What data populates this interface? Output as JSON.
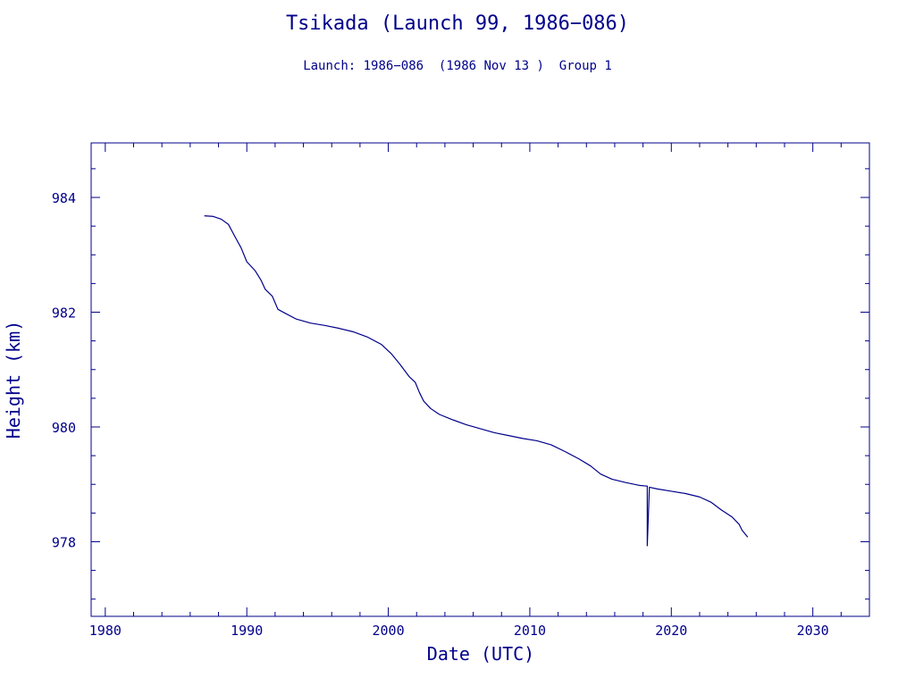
{
  "chart_data": {
    "type": "line",
    "title": "Tsikada (Launch 99, 1986−086)",
    "subtitle": "Launch: 1986−086  (1986 Nov 13 )  Group 1",
    "xlabel": "Date (UTC)",
    "ylabel": "Height (km)",
    "xlim": [
      1979,
      2034
    ],
    "ylim": [
      976.7,
      984.95
    ],
    "xticks": [
      1980,
      1990,
      2000,
      2010,
      2020,
      2030
    ],
    "xtick_labels": [
      "1980",
      "1990",
      "2000",
      "2010",
      "2020",
      "2030"
    ],
    "yticks": [
      978,
      980,
      982,
      984
    ],
    "ytick_labels": [
      "978",
      "980",
      "982",
      "984"
    ],
    "grid": false,
    "colors": {
      "line": "#00008b",
      "text": "#00008b",
      "background": "#ffffff"
    },
    "series": [
      {
        "values": [
          [
            1987.0,
            983.68
          ],
          [
            1987.6,
            983.67
          ],
          [
            1988.2,
            983.62
          ],
          [
            1988.7,
            983.53
          ],
          [
            1989.2,
            983.3
          ],
          [
            1989.6,
            983.12
          ],
          [
            1990.0,
            982.88
          ],
          [
            1990.6,
            982.72
          ],
          [
            1991.0,
            982.56
          ],
          [
            1991.3,
            982.4
          ],
          [
            1991.8,
            982.28
          ],
          [
            1992.2,
            982.05
          ],
          [
            1992.8,
            981.97
          ],
          [
            1993.5,
            981.88
          ],
          [
            1994.5,
            981.81
          ],
          [
            1995.5,
            981.77
          ],
          [
            1996.5,
            981.72
          ],
          [
            1997.5,
            981.66
          ],
          [
            1998.5,
            981.57
          ],
          [
            1999.5,
            981.44
          ],
          [
            2000.2,
            981.28
          ],
          [
            2000.8,
            981.1
          ],
          [
            2001.5,
            980.87
          ],
          [
            2001.9,
            980.78
          ],
          [
            2002.2,
            980.6
          ],
          [
            2002.5,
            980.45
          ],
          [
            2003.0,
            980.32
          ],
          [
            2003.6,
            980.22
          ],
          [
            2004.5,
            980.13
          ],
          [
            2005.5,
            980.04
          ],
          [
            2006.5,
            979.97
          ],
          [
            2007.5,
            979.9
          ],
          [
            2008.5,
            979.85
          ],
          [
            2009.5,
            979.8
          ],
          [
            2010.5,
            979.76
          ],
          [
            2011.5,
            979.69
          ],
          [
            2012.5,
            979.57
          ],
          [
            2013.5,
            979.44
          ],
          [
            2014.3,
            979.32
          ],
          [
            2015.0,
            979.18
          ],
          [
            2015.8,
            979.09
          ],
          [
            2016.8,
            979.03
          ],
          [
            2017.8,
            978.98
          ],
          [
            2018.3,
            978.97
          ],
          [
            2018.3,
            977.93
          ],
          [
            2018.45,
            978.95
          ],
          [
            2019.0,
            978.92
          ],
          [
            2020.0,
            978.88
          ],
          [
            2021.0,
            978.84
          ],
          [
            2022.0,
            978.78
          ],
          [
            2022.8,
            978.69
          ],
          [
            2023.5,
            978.56
          ],
          [
            2024.3,
            978.43
          ],
          [
            2024.8,
            978.3
          ],
          [
            2025.0,
            978.2
          ],
          [
            2025.4,
            978.08
          ]
        ]
      }
    ]
  }
}
